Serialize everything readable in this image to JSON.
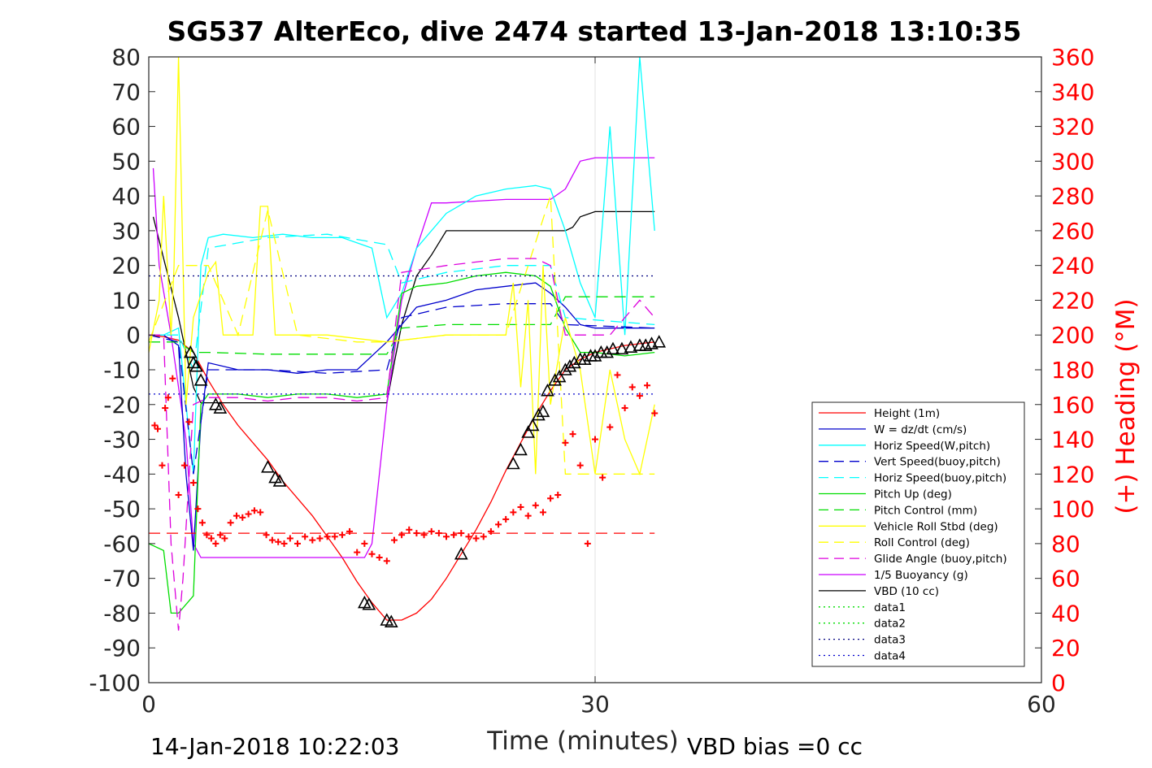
{
  "title": "SG537 AlterEco, dive 2474 started 13-Jan-2018 13:10:35",
  "footer": {
    "timestamp": "14-Jan-2018 10:22:03",
    "vbd_bias": "VBD bias =0 cc"
  },
  "colors": {
    "height": "#ff0000",
    "w": "#0000cc",
    "horiz_speed": "#00ffff",
    "pitch": "#00dd00",
    "roll": "#ffff00",
    "glide": "#dd00dd",
    "buoyancy": "#cc00ff",
    "vbd": "#000000",
    "heading": "#ff0000"
  },
  "chart_data": {
    "type": "line",
    "title": "SG537 AlterEco, dive 2474 started 13-Jan-2018 13:10:35",
    "xlabel": "Time (minutes)",
    "ylabel_right": "(+) Heading (°M)",
    "xlim": [
      0,
      60
    ],
    "ylim": [
      -100,
      80
    ],
    "ylim_right": [
      0,
      360
    ],
    "x_ticks": [
      "0",
      "30",
      "60"
    ],
    "x_tick_values": [
      0,
      30,
      60
    ],
    "y_ticks": [
      "80",
      "70",
      "60",
      "50",
      "40",
      "30",
      "20",
      "10",
      "0",
      "-10",
      "-20",
      "-30",
      "-40",
      "-50",
      "-60",
      "-70",
      "-80",
      "-90",
      "-100"
    ],
    "y_tick_values": [
      80,
      70,
      60,
      50,
      40,
      30,
      20,
      10,
      0,
      -10,
      -20,
      -30,
      -40,
      -50,
      -60,
      -70,
      -80,
      -90,
      -100
    ],
    "y_right_ticks": [
      "360",
      "340",
      "320",
      "300",
      "280",
      "260",
      "240",
      "220",
      "200",
      "180",
      "160",
      "140",
      "120",
      "100",
      "80",
      "60",
      "40",
      "20",
      "0"
    ],
    "y_right_tick_values": [
      360,
      340,
      320,
      300,
      280,
      260,
      240,
      220,
      200,
      180,
      160,
      140,
      120,
      100,
      80,
      60,
      40,
      20,
      0
    ],
    "grid_x": [
      30
    ],
    "legend_position": "bottom-right",
    "legend": [
      {
        "label": "Height (1m)",
        "color": "#ff0000",
        "style": "solid"
      },
      {
        "label": "W = dz/dt (cm/s)",
        "color": "#0000cc",
        "style": "solid"
      },
      {
        "label": "Horiz Speed(W,pitch)",
        "color": "#00ffff",
        "style": "solid"
      },
      {
        "label": "Vert Speed(buoy,pitch)",
        "color": "#0000cc",
        "style": "dashed"
      },
      {
        "label": "Horiz Speed(buoy,pitch)",
        "color": "#00ffff",
        "style": "dashed"
      },
      {
        "label": "Pitch Up (deg)",
        "color": "#00dd00",
        "style": "solid"
      },
      {
        "label": "Pitch Control (mm)",
        "color": "#00dd00",
        "style": "dashed"
      },
      {
        "label": "Vehicle Roll Stbd (deg)",
        "color": "#ffff00",
        "style": "solid"
      },
      {
        "label": "Roll Control (deg)",
        "color": "#ffff00",
        "style": "dashed"
      },
      {
        "label": "Glide Angle (buoy,pitch)",
        "color": "#dd00dd",
        "style": "dashed"
      },
      {
        "label": "1/5 Buoyancy (g)",
        "color": "#cc00ff",
        "style": "solid"
      },
      {
        "label": "VBD (10 cc)",
        "color": "#000000",
        "style": "solid"
      },
      {
        "label": "data1",
        "color": "#00dd00",
        "style": "dotted"
      },
      {
        "label": "data2",
        "color": "#00dd00",
        "style": "dotted"
      },
      {
        "label": "data3",
        "color": "#000080",
        "style": "dotted"
      },
      {
        "label": "data4",
        "color": "#0000cc",
        "style": "dotted"
      }
    ],
    "series": [
      {
        "name": "Height (1m)",
        "axis": "left",
        "color": "#ff0000",
        "style": "solid",
        "x": [
          0,
          1,
          2,
          3,
          4,
          5,
          6,
          7,
          8,
          9,
          10,
          11,
          12,
          13,
          14,
          15,
          16,
          17,
          18,
          19,
          20,
          21,
          22,
          23,
          24,
          25,
          26,
          27,
          28,
          29,
          30,
          31,
          32,
          33,
          34
        ],
        "y": [
          0,
          -0.5,
          -1.5,
          -5,
          -13,
          -20,
          -26,
          -31,
          -36,
          -42,
          -47,
          -52,
          -58,
          -64,
          -71,
          -77,
          -82,
          -82,
          -80,
          -76,
          -70,
          -63,
          -56,
          -48,
          -39,
          -31,
          -23,
          -16,
          -10,
          -7,
          -5,
          -4,
          -3,
          -2.5,
          -2
        ]
      },
      {
        "name": "VBD (10 cc)",
        "axis": "left",
        "color": "#000000",
        "style": "solid",
        "x": [
          0.3,
          1,
          2,
          3,
          3.5,
          5,
          8,
          10,
          12,
          14,
          15,
          16,
          16.5,
          17,
          18,
          19,
          20,
          21,
          22,
          25,
          27,
          28,
          28.5,
          29,
          30,
          32,
          34
        ],
        "y": [
          34,
          22,
          5,
          -15,
          -19.5,
          -19.5,
          -19.5,
          -19.5,
          -19.5,
          -19.5,
          -19.5,
          -19.5,
          -8,
          3,
          17,
          23,
          30,
          30,
          30,
          30,
          30,
          30,
          31,
          34,
          35.5,
          35.5,
          35.5
        ]
      },
      {
        "name": "1/5 Buoyancy (g)",
        "axis": "left",
        "color": "#cc00ff",
        "style": "solid",
        "x": [
          0.3,
          0.7,
          1.5,
          2.5,
          3,
          3.5,
          5,
          10,
          14,
          14.5,
          15,
          16,
          16.5,
          17,
          18,
          19,
          20,
          22,
          24,
          26,
          27,
          28,
          29,
          30,
          32,
          34
        ],
        "y": [
          48,
          20,
          0,
          -30,
          -60,
          -64,
          -64,
          -64,
          -64,
          -64,
          -60,
          -20,
          -5,
          10,
          25,
          38,
          38,
          38.5,
          39,
          39,
          39,
          42,
          50,
          51,
          51,
          51
        ]
      },
      {
        "name": "W = dz/dt (cm/s)",
        "axis": "left",
        "color": "#0000cc",
        "style": "solid",
        "x": [
          0,
          1,
          2,
          2.5,
          3,
          3.5,
          4,
          6,
          8,
          10,
          12,
          14,
          16,
          17,
          18,
          20,
          22,
          24,
          26,
          27,
          28,
          29,
          30,
          32,
          34
        ],
        "y": [
          0,
          0,
          -3,
          -40,
          -62,
          -25,
          -8,
          -10,
          -10,
          -11,
          -10,
          -10,
          -2,
          3,
          8,
          10,
          13,
          14,
          15,
          12,
          8,
          3,
          2,
          2,
          2
        ]
      },
      {
        "name": "Horiz Speed(W,pitch)",
        "axis": "left",
        "color": "#00ffff",
        "style": "solid",
        "x": [
          0,
          1,
          2,
          2.5,
          3,
          3.5,
          4,
          5,
          7,
          9,
          11,
          13,
          15,
          16,
          17,
          18,
          20,
          22,
          24,
          26,
          27,
          28,
          29,
          30,
          31,
          32,
          33,
          34
        ],
        "y": [
          0,
          0,
          2,
          -20,
          -40,
          20,
          28,
          29,
          28,
          29,
          28,
          28,
          25,
          5,
          12,
          25,
          35,
          40,
          42,
          43,
          42,
          30,
          15,
          5,
          60,
          0,
          80,
          30
        ]
      },
      {
        "name": "Pitch Up (deg)",
        "axis": "left",
        "color": "#00dd00",
        "style": "solid",
        "x": [
          0,
          1,
          1.5,
          2,
          3,
          3.5,
          4,
          6,
          8,
          10,
          12,
          14,
          16,
          17,
          18,
          20,
          22,
          24,
          26,
          27,
          28,
          29,
          30,
          32,
          34
        ],
        "y": [
          -60,
          -62,
          -80,
          -80,
          -75,
          -20,
          -17,
          -17,
          -18,
          -17,
          -17,
          -18,
          -17,
          12,
          14,
          15,
          17,
          18,
          17,
          14,
          2,
          -5,
          -5,
          -6,
          -5
        ]
      },
      {
        "name": "Pitch Control (mm)",
        "axis": "left",
        "color": "#00dd00",
        "style": "dashed",
        "x": [
          0,
          2,
          3,
          4,
          8,
          12,
          16,
          17,
          20,
          24,
          27,
          28,
          34
        ],
        "y": [
          -2,
          -2,
          -5,
          -5,
          -5.5,
          -5.5,
          -5.5,
          2,
          3,
          3,
          3,
          11,
          11
        ]
      },
      {
        "name": "Vert Speed(buoy,pitch)",
        "axis": "left",
        "color": "#0000cc",
        "style": "dashed",
        "x": [
          0,
          2,
          3,
          4,
          8,
          12,
          16,
          17,
          20,
          24,
          27,
          28,
          34
        ],
        "y": [
          0,
          -2,
          -40,
          -10,
          -10,
          -11,
          -10,
          5,
          8,
          9,
          9,
          3,
          2
        ]
      },
      {
        "name": "Horiz Speed(buoy,pitch)",
        "axis": "left",
        "color": "#00ffff",
        "style": "dashed",
        "x": [
          0,
          2,
          3,
          4,
          8,
          12,
          16,
          17,
          20,
          24,
          27,
          28,
          34
        ],
        "y": [
          0,
          0,
          -10,
          25,
          28,
          29,
          26,
          15,
          18,
          20,
          20,
          5,
          3
        ]
      },
      {
        "name": "Vehicle Roll Stbd (deg)",
        "axis": "left",
        "color": "#ffff00",
        "style": "solid",
        "x": [
          0,
          0.7,
          1,
          1.5,
          1.7,
          2,
          2.5,
          3,
          4,
          4.5,
          5,
          7,
          7.5,
          8,
          8.5,
          9,
          12,
          16,
          20,
          24,
          24.5,
          25,
          25.5,
          26,
          26.5,
          27,
          28,
          29,
          30,
          31,
          32,
          33,
          34
        ],
        "y": [
          -5,
          10,
          40,
          0,
          20,
          80,
          -20,
          5,
          18,
          21,
          0,
          0,
          37,
          37,
          0,
          0,
          0,
          -2,
          0,
          0,
          15,
          -15,
          10,
          -40,
          20,
          -20,
          5,
          -10,
          -40,
          -10,
          -30,
          -40,
          -20
        ]
      },
      {
        "name": "Roll Control (deg)",
        "axis": "left",
        "color": "#ffff00",
        "style": "dashed",
        "x": [
          0,
          2,
          4,
          6,
          8,
          10,
          14,
          16,
          20,
          24,
          27,
          28,
          34
        ],
        "y": [
          -2,
          20,
          20,
          0,
          36,
          0,
          -2,
          -2,
          0,
          0,
          40,
          -40,
          -40
        ]
      },
      {
        "name": "Glide Angle (buoy,pitch)",
        "axis": "left",
        "color": "#dd00dd",
        "style": "dashed",
        "x": [
          0,
          1,
          1.5,
          2,
          2.3,
          3,
          4,
          6,
          8,
          10,
          12,
          14,
          16,
          17,
          20,
          22,
          24,
          26,
          27,
          28,
          29,
          30,
          31,
          32,
          33,
          34
        ],
        "y": [
          0,
          0,
          -60,
          -85,
          -70,
          -20,
          -18,
          -18,
          -19,
          -18,
          -18,
          -19,
          -18,
          18,
          20,
          21,
          22,
          22,
          20,
          0,
          0,
          0,
          0,
          5,
          10,
          5
        ]
      },
      {
        "name": "data3",
        "axis": "left",
        "color": "#000080",
        "style": "dotted",
        "x": [
          0,
          34
        ],
        "y": [
          17,
          17
        ]
      },
      {
        "name": "data4",
        "axis": "left",
        "color": "#0000cc",
        "style": "dotted",
        "x": [
          0,
          34
        ],
        "y": [
          -17,
          -17
        ]
      },
      {
        "name": "Heading reference",
        "axis": "left",
        "color": "#ff0000",
        "style": "dashed",
        "x": [
          0,
          34
        ],
        "y": [
          -57,
          -57
        ]
      }
    ],
    "heading_points": {
      "axis": "right",
      "color": "#ff0000",
      "marker": "+",
      "x": [
        0.4,
        0.6,
        0.9,
        1.1,
        1.3,
        1.6,
        2.0,
        2.4,
        2.7,
        3.0,
        3.3,
        3.6,
        3.9,
        4.2,
        4.5,
        4.8,
        5.1,
        5.5,
        5.9,
        6.3,
        6.7,
        7.1,
        7.5,
        7.9,
        8.3,
        8.7,
        9.1,
        9.5,
        10.0,
        10.5,
        11.0,
        11.5,
        12.0,
        12.5,
        13.0,
        13.5,
        14.0,
        14.5,
        15.0,
        15.5,
        16.0,
        16.5,
        17.0,
        17.5,
        18.0,
        18.5,
        19.0,
        19.5,
        20.0,
        20.5,
        21.0,
        21.5,
        22.0,
        22.5,
        23.0,
        23.5,
        24.0,
        24.5,
        25.0,
        25.5,
        26.0,
        26.5,
        27.0,
        27.5,
        28.0,
        28.5,
        29.0,
        29.5,
        30.0,
        30.5,
        31.0,
        31.5,
        32.0,
        32.5,
        33.0,
        33.5,
        34.0
      ],
      "y": [
        148,
        146,
        125,
        158,
        164,
        175,
        108,
        125,
        150,
        115,
        100,
        92,
        85,
        83,
        80,
        85,
        83,
        92,
        96,
        95,
        97,
        99,
        98,
        85,
        82,
        81,
        80,
        83,
        80,
        84,
        82,
        83,
        84,
        84,
        85,
        87,
        75,
        80,
        74,
        72,
        70,
        82,
        85,
        88,
        86,
        85,
        87,
        86,
        84,
        85,
        86,
        84,
        83,
        84,
        87,
        91,
        94,
        98,
        101,
        96,
        102,
        98,
        106,
        108,
        138,
        143,
        125,
        80,
        140,
        118,
        147,
        177,
        158,
        170,
        165,
        171,
        155
      ]
    },
    "markers": {
      "axis": "left",
      "color": "#000000",
      "shape": "triangle",
      "x": [
        2.8,
        3.0,
        3.2,
        3.5,
        4.5,
        4.8,
        8.0,
        8.5,
        8.8,
        14.5,
        14.8,
        16.0,
        16.3,
        21.0,
        24.5,
        25.0,
        25.5,
        25.8,
        26.2,
        26.5,
        26.8,
        27.3,
        27.6,
        28.0,
        28.3,
        28.6,
        29.0,
        29.3,
        29.7,
        30.0,
        30.4,
        30.8,
        31.2,
        31.8,
        32.4,
        33.0,
        33.4,
        33.8,
        34.3
      ],
      "y": [
        -5,
        -8,
        -9,
        -13,
        -20,
        -21,
        -38,
        -41,
        -42,
        -77,
        -77.5,
        -82,
        -82.5,
        -63,
        -37,
        -33,
        -28,
        -26,
        -23,
        -22,
        -16,
        -13,
        -12,
        -10,
        -9,
        -8,
        -7,
        -7,
        -6,
        -6,
        -5,
        -5,
        -4,
        -4,
        -3.5,
        -3,
        -3,
        -2.5,
        -2
      ]
    }
  }
}
